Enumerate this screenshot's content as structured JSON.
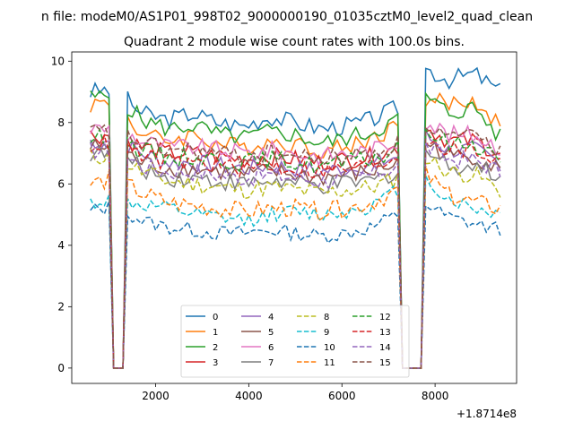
{
  "chart_data": {
    "type": "line",
    "suptitle": "n file: modeM0/AS1P01_998T02_9000000190_01035cztM0_level2_quad_clean",
    "title": "Quadrant 2 module wise count rates with 100.0s bins.",
    "x_offset_label": "+1.8714e8",
    "xlim": [
      200,
      9750
    ],
    "ylim": [
      -0.5,
      10.3
    ],
    "xticks": [
      2000,
      4000,
      6000,
      8000
    ],
    "xtick_labels": [
      "2000",
      "4000",
      "6000",
      "8000"
    ],
    "yticks": [
      0,
      2,
      4,
      6,
      8,
      10
    ],
    "ytick_labels": [
      "0",
      "2",
      "4",
      "6",
      "8",
      "10"
    ],
    "legend_location": "lower center",
    "gap_ranges": [
      [
        1050,
        1350
      ],
      [
        7250,
        7700
      ]
    ],
    "series": [
      {
        "name": "0",
        "color": "#1f77b4",
        "dash": "solid",
        "profile": [
          9.0,
          9.1,
          8.3,
          8.1,
          8.3,
          8.0,
          7.9,
          8.2,
          8.0,
          7.8,
          7.9,
          8.1,
          8.5,
          9.8,
          9.4,
          9.6,
          9.0
        ],
        "noise": 0.3
      },
      {
        "name": "1",
        "color": "#ff7f0e",
        "dash": "solid",
        "profile": [
          8.6,
          8.7,
          7.6,
          7.4,
          7.6,
          7.3,
          7.2,
          7.4,
          7.3,
          7.1,
          7.2,
          7.5,
          7.9,
          8.8,
          8.6,
          8.7,
          7.9
        ],
        "noise": 0.3
      },
      {
        "name": "2",
        "color": "#2ca02c",
        "dash": "solid",
        "profile": [
          8.8,
          8.9,
          8.1,
          7.8,
          7.9,
          7.6,
          7.5,
          7.7,
          7.6,
          7.3,
          7.5,
          7.7,
          8.1,
          8.9,
          8.3,
          8.5,
          7.5
        ],
        "noise": 0.3
      },
      {
        "name": "3",
        "color": "#d62728",
        "dash": "solid",
        "profile": [
          7.6,
          7.6,
          7.2,
          7.0,
          7.0,
          6.9,
          6.8,
          6.9,
          6.8,
          6.7,
          6.8,
          6.9,
          7.2,
          7.9,
          7.4,
          7.4,
          7.0
        ],
        "noise": 0.3
      },
      {
        "name": "4",
        "color": "#9467bd",
        "dash": "solid",
        "profile": [
          7.4,
          7.4,
          7.0,
          6.7,
          6.7,
          6.6,
          6.5,
          6.6,
          6.5,
          6.4,
          6.5,
          6.6,
          6.9,
          7.6,
          7.1,
          7.1,
          6.7
        ],
        "noise": 0.3
      },
      {
        "name": "5",
        "color": "#8c564b",
        "dash": "solid",
        "profile": [
          7.2,
          7.2,
          6.7,
          6.5,
          6.5,
          6.4,
          6.3,
          6.4,
          6.3,
          6.2,
          6.3,
          6.4,
          6.7,
          7.4,
          6.9,
          6.9,
          6.5
        ],
        "noise": 0.3
      },
      {
        "name": "6",
        "color": "#e377c2",
        "dash": "solid",
        "profile": [
          7.8,
          7.8,
          7.4,
          7.2,
          7.2,
          7.1,
          7.0,
          7.1,
          7.0,
          6.9,
          7.0,
          7.1,
          7.4,
          8.1,
          7.6,
          7.6,
          7.2
        ],
        "noise": 0.3
      },
      {
        "name": "7",
        "color": "#7f7f7f",
        "dash": "solid",
        "profile": [
          7.0,
          7.0,
          6.5,
          6.2,
          6.2,
          6.1,
          6.0,
          6.1,
          6.0,
          5.9,
          6.0,
          6.1,
          6.4,
          7.1,
          6.6,
          6.6,
          6.2
        ],
        "noise": 0.3
      },
      {
        "name": "8",
        "color": "#bcbd22",
        "dash": "dashed",
        "profile": [
          6.9,
          6.9,
          6.4,
          6.1,
          6.0,
          5.9,
          5.8,
          5.9,
          5.8,
          5.7,
          5.8,
          5.9,
          6.2,
          6.9,
          6.4,
          6.3,
          5.8
        ],
        "noise": 0.3
      },
      {
        "name": "9",
        "color": "#17becf",
        "dash": "dashed",
        "profile": [
          5.4,
          5.5,
          5.3,
          5.2,
          5.0,
          4.9,
          4.8,
          5.0,
          5.1,
          5.0,
          5.1,
          5.3,
          5.8,
          6.2,
          5.5,
          5.2,
          5.0
        ],
        "noise": 0.25
      },
      {
        "name": "10",
        "color": "#1f77b4",
        "dash": "dashed",
        "profile": [
          5.1,
          5.3,
          4.8,
          4.6,
          4.5,
          4.4,
          4.4,
          4.5,
          4.4,
          4.3,
          4.4,
          4.6,
          5.0,
          5.4,
          4.9,
          4.7,
          4.5
        ],
        "noise": 0.25
      },
      {
        "name": "11",
        "color": "#ff7f0e",
        "dash": "dashed",
        "profile": [
          6.0,
          6.2,
          5.7,
          5.4,
          5.3,
          5.2,
          5.1,
          5.2,
          5.2,
          5.1,
          5.2,
          5.4,
          5.8,
          6.4,
          5.6,
          5.4,
          5.2
        ],
        "noise": 0.3
      },
      {
        "name": "12",
        "color": "#2ca02c",
        "dash": "dashed",
        "profile": [
          7.5,
          7.5,
          7.1,
          6.9,
          6.9,
          6.8,
          6.7,
          6.8,
          6.7,
          6.6,
          6.7,
          6.8,
          7.1,
          7.8,
          7.3,
          7.3,
          6.9
        ],
        "noise": 0.3
      },
      {
        "name": "13",
        "color": "#d62728",
        "dash": "dashed",
        "profile": [
          7.3,
          7.3,
          6.9,
          6.7,
          6.7,
          6.6,
          6.5,
          6.6,
          6.5,
          6.4,
          6.5,
          6.6,
          6.9,
          7.6,
          7.1,
          7.1,
          6.7
        ],
        "noise": 0.3
      },
      {
        "name": "14",
        "color": "#9467bd",
        "dash": "dashed",
        "profile": [
          7.1,
          7.1,
          6.6,
          6.4,
          6.4,
          6.3,
          6.2,
          6.3,
          6.2,
          6.1,
          6.2,
          6.3,
          6.6,
          7.3,
          6.8,
          6.8,
          6.4
        ],
        "noise": 0.3
      },
      {
        "name": "15",
        "color": "#8c564b",
        "dash": "dashed",
        "profile": [
          7.7,
          7.7,
          7.3,
          7.1,
          7.1,
          7.0,
          6.9,
          7.0,
          6.9,
          6.8,
          6.9,
          7.0,
          7.3,
          8.0,
          7.5,
          7.5,
          7.1
        ],
        "noise": 0.3
      }
    ]
  }
}
